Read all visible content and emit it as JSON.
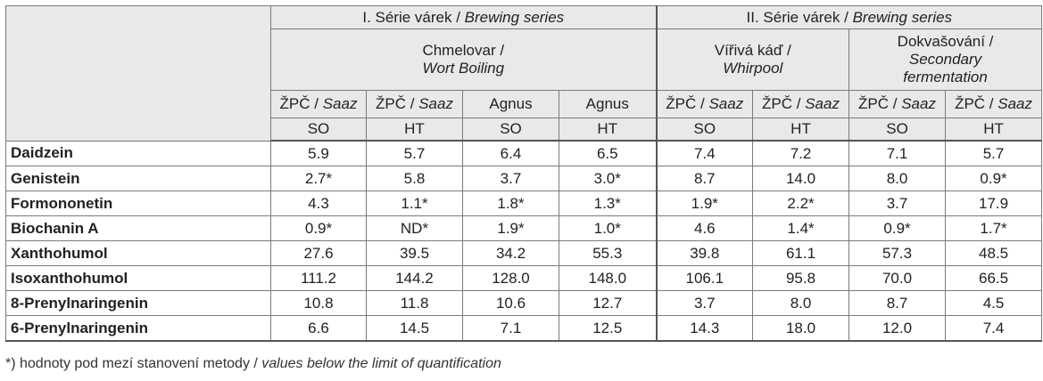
{
  "series": [
    {
      "label": "I. Série várek / ",
      "label_en": "Brewing series"
    },
    {
      "label": "II. Série várek / ",
      "label_en": "Brewing series"
    }
  ],
  "stages": [
    {
      "line1": "Chmelovar /",
      "line2": "Wort Boiling",
      "line3": ""
    },
    {
      "line1": "Vířivá káď /",
      "line2": "Whirpool",
      "line3": ""
    },
    {
      "line1": "Dokvašování /",
      "line2": "Secondary",
      "line3": "fermentation"
    }
  ],
  "varieties": [
    {
      "cz": "ŽPČ / ",
      "en": "Saaz"
    },
    {
      "cz": "ŽPČ / ",
      "en": "Saaz"
    },
    {
      "cz": "Agnus",
      "en": ""
    },
    {
      "cz": "Agnus",
      "en": ""
    },
    {
      "cz": "ŽPČ / ",
      "en": "Saaz"
    },
    {
      "cz": "ŽPČ / ",
      "en": "Saaz"
    },
    {
      "cz": "ŽPČ / ",
      "en": "Saaz"
    },
    {
      "cz": "ŽPČ / ",
      "en": "Saaz"
    }
  ],
  "subcodes": [
    "SO",
    "HT",
    "SO",
    "HT",
    "SO",
    "HT",
    "SO",
    "HT"
  ],
  "rows": [
    {
      "name": "Daidzein",
      "values": [
        "5.9",
        "5.7",
        "6.4",
        "6.5",
        "7.4",
        "7.2",
        "7.1",
        "5.7"
      ]
    },
    {
      "name": "Genistein",
      "values": [
        "2.7*",
        "5.8",
        "3.7",
        "3.0*",
        "8.7",
        "14.0",
        "8.0",
        "0.9*"
      ]
    },
    {
      "name": "Formononetin",
      "values": [
        "4.3",
        "1.1*",
        "1.8*",
        "1.3*",
        "1.9*",
        "2.2*",
        "3.7",
        "17.9"
      ]
    },
    {
      "name": "Biochanin A",
      "values": [
        "0.9*",
        "ND*",
        "1.9*",
        "1.0*",
        "4.6",
        "1.4*",
        "0.9*",
        "1.7*"
      ]
    },
    {
      "name": "Xanthohumol",
      "values": [
        "27.6",
        "39.5",
        "34.2",
        "55.3",
        "39.8",
        "61.1",
        "57.3",
        "48.5"
      ]
    },
    {
      "name": "Isoxanthohumol",
      "values": [
        "111.2",
        "144.2",
        "128.0",
        "148.0",
        "106.1",
        "95.8",
        "70.0",
        "66.5"
      ]
    },
    {
      "name": "8-Prenylnaringenin",
      "values": [
        "10.8",
        "11.8",
        "10.6",
        "12.7",
        "3.7",
        "8.0",
        "8.7",
        "4.5"
      ]
    },
    {
      "name": "6-Prenylnaringenin",
      "values": [
        "6.6",
        "14.5",
        "7.1",
        "12.5",
        "14.3",
        "18.0",
        "12.0",
        "7.4"
      ]
    }
  ],
  "footnote": {
    "cz": "*) hodnoty pod mezí stanovení metody / ",
    "en": "values below the limit of quantification"
  }
}
